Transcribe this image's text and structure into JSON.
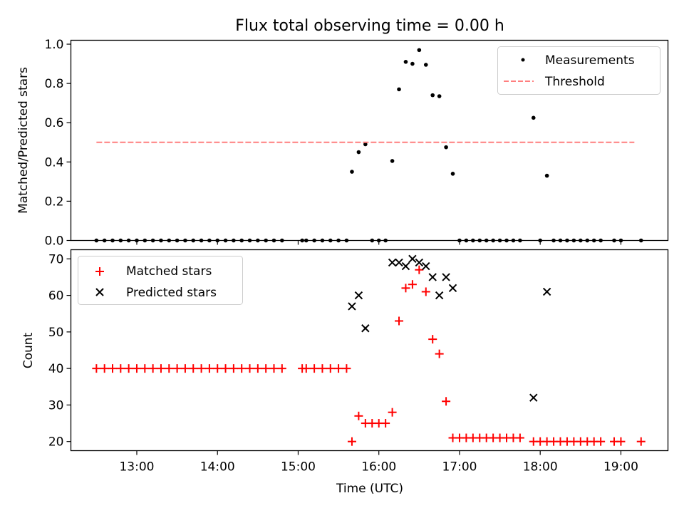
{
  "figure": {
    "title": "Flux total observing time = 0.00 h",
    "xlabel": "Time (UTC)",
    "x_tick_labels": [
      "13:00",
      "14:00",
      "15:00",
      "16:00",
      "17:00",
      "18:00",
      "19:00"
    ]
  },
  "chart_data": [
    {
      "type": "scatter",
      "ylabel": "Matched/Predicted stars",
      "ylim": [
        0,
        1.02
      ],
      "xlim": [
        "12:11",
        "19:35"
      ],
      "y_ticks": [
        0.0,
        0.2,
        0.4,
        0.6,
        0.8,
        1.0
      ],
      "y_tick_labels": [
        "0.0",
        "0.2",
        "0.4",
        "0.6",
        "0.8",
        "1.0"
      ],
      "legend_placement": "top-right",
      "series": [
        {
          "name": "Measurements",
          "color": "#000000",
          "marker": "dot",
          "x": [
            "12:30",
            "12:36",
            "12:42",
            "12:48",
            "12:54",
            "13:00",
            "13:06",
            "13:12",
            "13:18",
            "13:24",
            "13:30",
            "13:36",
            "13:42",
            "13:48",
            "13:54",
            "14:00",
            "14:06",
            "14:12",
            "14:18",
            "14:24",
            "14:30",
            "14:36",
            "14:42",
            "14:48",
            "15:03",
            "15:06",
            "15:12",
            "15:18",
            "15:24",
            "15:30",
            "15:36",
            "15:40",
            "15:45",
            "15:50",
            "15:55",
            "16:00",
            "16:05",
            "16:10",
            "16:15",
            "16:20",
            "16:25",
            "16:30",
            "16:35",
            "16:40",
            "16:45",
            "16:50",
            "16:55",
            "17:00",
            "17:05",
            "17:10",
            "17:15",
            "17:20",
            "17:25",
            "17:30",
            "17:35",
            "17:40",
            "17:45",
            "17:55",
            "18:00",
            "18:05",
            "18:10",
            "18:15",
            "18:20",
            "18:25",
            "18:30",
            "18:35",
            "18:40",
            "18:45",
            "18:55",
            "19:00",
            "19:15"
          ],
          "y": [
            0,
            0,
            0,
            0,
            0,
            0,
            0,
            0,
            0,
            0,
            0,
            0,
            0,
            0,
            0,
            0,
            0,
            0,
            0,
            0,
            0,
            0,
            0,
            0,
            0,
            0,
            0,
            0,
            0,
            0,
            0,
            0.35,
            0.45,
            0.49,
            0,
            0,
            0,
            0.405,
            0.77,
            0.91,
            0.9,
            0.97,
            0.895,
            0.74,
            0.735,
            0.475,
            0.34,
            0,
            0,
            0,
            0,
            0,
            0,
            0,
            0,
            0,
            0,
            0.625,
            0,
            0.33,
            0,
            0,
            0,
            0,
            0,
            0,
            0,
            0,
            0,
            0,
            0
          ]
        },
        {
          "name": "Threshold",
          "color": "#ff7f7f",
          "style": "dashed",
          "x": [
            "12:30",
            "19:10"
          ],
          "y": [
            0.5,
            0.5
          ]
        }
      ]
    },
    {
      "type": "scatter",
      "ylabel": "Count",
      "xlabel": "Time (UTC)",
      "ylim": [
        17.5,
        72.5
      ],
      "xlim": [
        "12:11",
        "19:35"
      ],
      "y_ticks": [
        20,
        30,
        40,
        50,
        60,
        70
      ],
      "y_tick_labels": [
        "20",
        "30",
        "40",
        "50",
        "60",
        "70"
      ],
      "legend_placement": "top-left",
      "series": [
        {
          "name": "Matched stars",
          "color": "#ff0000",
          "marker": "plus",
          "x": [
            "12:30",
            "12:36",
            "12:42",
            "12:48",
            "12:54",
            "13:00",
            "13:06",
            "13:12",
            "13:18",
            "13:24",
            "13:30",
            "13:36",
            "13:42",
            "13:48",
            "13:54",
            "14:00",
            "14:06",
            "14:12",
            "14:18",
            "14:24",
            "14:30",
            "14:36",
            "14:42",
            "14:48",
            "15:03",
            "15:06",
            "15:12",
            "15:18",
            "15:24",
            "15:30",
            "15:36",
            "15:40",
            "15:45",
            "15:50",
            "15:55",
            "16:00",
            "16:05",
            "16:10",
            "16:15",
            "16:20",
            "16:25",
            "16:30",
            "16:35",
            "16:40",
            "16:45",
            "16:50",
            "16:55",
            "17:00",
            "17:05",
            "17:10",
            "17:15",
            "17:20",
            "17:25",
            "17:30",
            "17:35",
            "17:40",
            "17:45",
            "17:55",
            "18:00",
            "18:05",
            "18:10",
            "18:15",
            "18:20",
            "18:25",
            "18:30",
            "18:35",
            "18:40",
            "18:45",
            "18:55",
            "19:00",
            "19:15"
          ],
          "y": [
            40,
            40,
            40,
            40,
            40,
            40,
            40,
            40,
            40,
            40,
            40,
            40,
            40,
            40,
            40,
            40,
            40,
            40,
            40,
            40,
            40,
            40,
            40,
            40,
            40,
            40,
            40,
            40,
            40,
            40,
            40,
            20,
            27,
            25,
            25,
            25,
            25,
            28,
            53,
            62,
            63,
            67,
            61,
            48,
            44,
            31,
            21,
            21,
            21,
            21,
            21,
            21,
            21,
            21,
            21,
            21,
            21,
            20,
            20,
            20,
            20,
            20,
            20,
            20,
            20,
            20,
            20,
            20,
            20,
            20,
            20
          ]
        },
        {
          "name": "Predicted stars",
          "color": "#000000",
          "marker": "x",
          "x": [
            "15:40",
            "15:45",
            "15:50",
            "16:10",
            "16:15",
            "16:20",
            "16:25",
            "16:30",
            "16:35",
            "16:40",
            "16:45",
            "16:50",
            "16:55",
            "17:55",
            "18:05"
          ],
          "y": [
            57,
            60,
            51,
            69,
            69,
            68,
            70,
            69,
            68,
            65,
            60,
            65,
            62,
            32,
            61
          ]
        }
      ]
    }
  ]
}
